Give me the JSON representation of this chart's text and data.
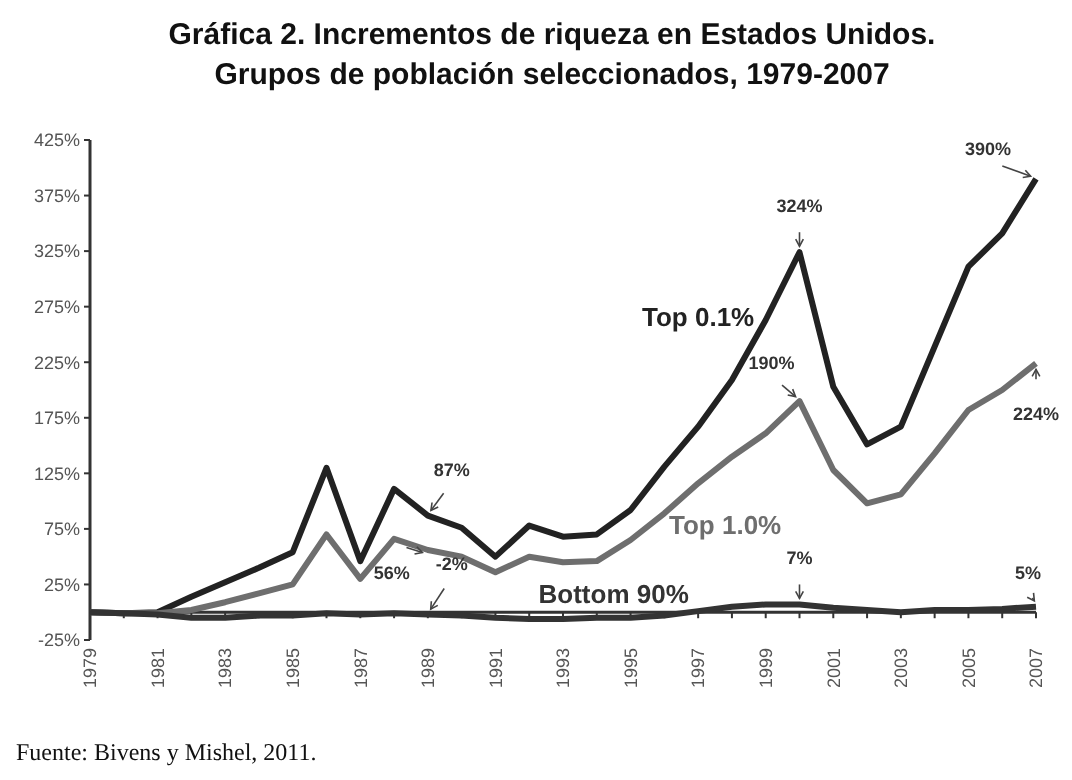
{
  "chart_data": {
    "type": "line",
    "title": "Gráfica 2. Incrementos de riqueza en Estados Unidos.",
    "subtitle": "Grupos de población seleccionados, 1979-2007",
    "x": [
      1979,
      1980,
      1981,
      1982,
      1983,
      1984,
      1985,
      1986,
      1987,
      1988,
      1989,
      1990,
      1991,
      1992,
      1993,
      1994,
      1995,
      1996,
      1997,
      1998,
      1999,
      2000,
      2001,
      2002,
      2003,
      2004,
      2005,
      2006,
      2007
    ],
    "series": [
      {
        "name": "Top 0.1%",
        "color": "#222222",
        "values": [
          0,
          -1,
          0,
          14,
          27,
          40,
          54,
          130,
          46,
          111,
          87,
          76,
          50,
          78,
          68,
          70,
          92,
          131,
          167,
          209,
          263,
          324,
          203,
          151,
          167,
          239,
          311,
          341,
          390
        ]
      },
      {
        "name": "Top 1.0%",
        "color": "#6e6e6e",
        "values": [
          0,
          -1,
          -1,
          2,
          9,
          17,
          25,
          70,
          30,
          66,
          56,
          50,
          36,
          50,
          45,
          46,
          65,
          89,
          116,
          140,
          161,
          190,
          128,
          98,
          106,
          143,
          182,
          200,
          224
        ]
      },
      {
        "name": "Bottom 90%",
        "color": "#333333",
        "values": [
          0,
          -1,
          -2,
          -5,
          -5,
          -3,
          -3,
          -1,
          -2,
          -1,
          -2,
          -3,
          -5,
          -6,
          -6,
          -5,
          -5,
          -3,
          1,
          5,
          7,
          7,
          4,
          2,
          0,
          2,
          2,
          3,
          5
        ]
      }
    ],
    "xlim": [
      1979,
      2007
    ],
    "xticks": [
      1979,
      {
        "value": 1980,
        "label": null
      },
      1981,
      {
        "value": 1982,
        "label": null
      },
      1983,
      {
        "value": 1984,
        "label": null
      },
      1985,
      {
        "value": 1986,
        "label": null
      },
      1987,
      {
        "value": 1988,
        "label": null
      },
      1989,
      {
        "value": 1990,
        "label": null
      },
      1991,
      {
        "value": 1992,
        "label": null
      },
      1993,
      {
        "value": 1994,
        "label": null
      },
      1995,
      {
        "value": 1996,
        "label": null
      },
      1997,
      {
        "value": 1998,
        "label": null
      },
      1999,
      {
        "value": 2000,
        "label": null
      },
      2001,
      {
        "value": 2002,
        "label": null
      },
      2003,
      {
        "value": 2004,
        "label": null
      },
      2005,
      {
        "value": 2006,
        "label": null
      },
      2007
    ],
    "ylim": [
      -25,
      425
    ],
    "yticks": [
      {
        "value": -25,
        "label": "-25%"
      },
      {
        "value": 25,
        "label": "25%"
      },
      {
        "value": 75,
        "label": "75%"
      },
      {
        "value": 125,
        "label": "125%"
      },
      {
        "value": 175,
        "label": "175%"
      },
      {
        "value": 225,
        "label": "225%"
      },
      {
        "value": 275,
        "label": "275%"
      },
      {
        "value": 325,
        "label": "325%"
      },
      {
        "value": 375,
        "label": "375%"
      },
      {
        "value": 425,
        "label": "425%"
      }
    ],
    "grid": false,
    "legend": false,
    "marker": "none",
    "line_style": "solid",
    "annotations": [
      {
        "text": "87%",
        "x": 1989,
        "y": 87
      },
      {
        "text": "56%",
        "x": 1989,
        "y": 56
      },
      {
        "text": "-2%",
        "x": 1989,
        "y": -2
      },
      {
        "text": "324%",
        "x": 2000,
        "y": 324
      },
      {
        "text": "190%",
        "x": 2000,
        "y": 190
      },
      {
        "text": "7%",
        "x": 2000,
        "y": 7
      },
      {
        "text": "390%",
        "x": 2007,
        "y": 390
      },
      {
        "text": "224%",
        "x": 2007,
        "y": 224
      },
      {
        "text": "5%",
        "x": 2007,
        "y": 5
      },
      "Fuente: Bivens y Mishel, 2011."
    ]
  }
}
